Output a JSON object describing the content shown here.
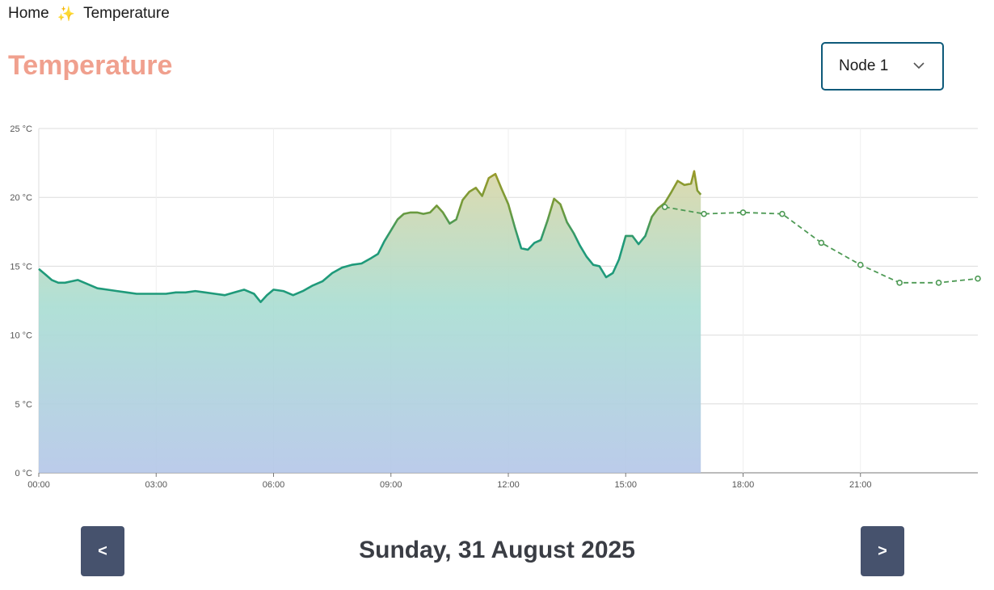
{
  "breadcrumb": {
    "home": "Home",
    "separator_icon": "sparkles-icon",
    "separator": "✨",
    "current": "Temperature"
  },
  "page_title": "Temperature",
  "node_select": {
    "value": "Node 1",
    "icon": "chevron-down-icon"
  },
  "date_label": "Sunday, 31 August 2025",
  "nav": {
    "prev_label": "<",
    "next_label": ">"
  },
  "colors": {
    "title": "#f0a08e",
    "line_low": "#1f9a7a",
    "line_high": "#9a9a2a",
    "forecast": "#4e9a55",
    "button": "#46526d",
    "select_border": "#0e5a7a"
  },
  "chart_data": {
    "type": "line",
    "xlim_hours": [
      0,
      24
    ],
    "ylim": [
      0,
      25
    ],
    "x_ticks": [
      "00:00",
      "03:00",
      "06:00",
      "09:00",
      "12:00",
      "15:00",
      "18:00",
      "21:00"
    ],
    "y_ticks": [
      "0 °C",
      "5 °C",
      "10 °C",
      "15 °C",
      "20 °C",
      "25 °C"
    ],
    "grid": true,
    "series": [
      {
        "style": "solid-area",
        "x": [
          0,
          0.17,
          0.33,
          0.5,
          0.67,
          0.83,
          1,
          1.25,
          1.5,
          1.75,
          2,
          2.25,
          2.5,
          2.75,
          3,
          3.25,
          3.5,
          3.75,
          4,
          4.25,
          4.5,
          4.75,
          5,
          5.25,
          5.5,
          5.67,
          5.83,
          6,
          6.25,
          6.5,
          6.75,
          7,
          7.25,
          7.5,
          7.75,
          8,
          8.25,
          8.5,
          8.67,
          8.83,
          9,
          9.17,
          9.33,
          9.5,
          9.67,
          9.83,
          10,
          10.17,
          10.33,
          10.5,
          10.67,
          10.83,
          11,
          11.17,
          11.33,
          11.5,
          11.67,
          11.83,
          12,
          12.17,
          12.33,
          12.5,
          12.67,
          12.83,
          13,
          13.17,
          13.33,
          13.5,
          13.67,
          13.83,
          14,
          14.17,
          14.33,
          14.5,
          14.67,
          14.83,
          15,
          15.17,
          15.33,
          15.5,
          15.67,
          15.83,
          16,
          16.17,
          16.33,
          16.5,
          16.67,
          16.75,
          16.83,
          16.92
        ],
        "y": [
          14.8,
          14.4,
          14.0,
          13.8,
          13.8,
          13.9,
          14.0,
          13.7,
          13.4,
          13.3,
          13.2,
          13.1,
          13.0,
          13.0,
          13.0,
          13.0,
          13.1,
          13.1,
          13.2,
          13.1,
          13.0,
          12.9,
          13.1,
          13.3,
          13.0,
          12.4,
          12.9,
          13.3,
          13.2,
          12.9,
          13.2,
          13.6,
          13.9,
          14.5,
          14.9,
          15.1,
          15.2,
          15.6,
          15.9,
          16.8,
          17.6,
          18.4,
          18.8,
          18.9,
          18.9,
          18.8,
          18.9,
          19.4,
          18.9,
          18.1,
          18.4,
          19.8,
          20.4,
          20.7,
          20.1,
          21.4,
          21.7,
          20.6,
          19.5,
          17.8,
          16.3,
          16.2,
          16.7,
          16.9,
          18.3,
          19.9,
          19.5,
          18.2,
          17.4,
          16.5,
          15.7,
          15.1,
          15.0,
          14.2,
          14.5,
          15.5,
          17.2,
          17.2,
          16.6,
          17.2,
          18.6,
          19.2,
          19.6,
          20.4,
          21.2,
          20.9,
          21.0,
          21.9,
          20.5,
          20.2
        ]
      },
      {
        "style": "dashed-markers",
        "x": [
          16,
          17,
          18,
          19,
          20,
          21,
          22,
          23,
          24
        ],
        "y": [
          19.3,
          18.8,
          18.9,
          18.8,
          16.7,
          15.1,
          13.8,
          13.8,
          14.1
        ]
      }
    ]
  }
}
